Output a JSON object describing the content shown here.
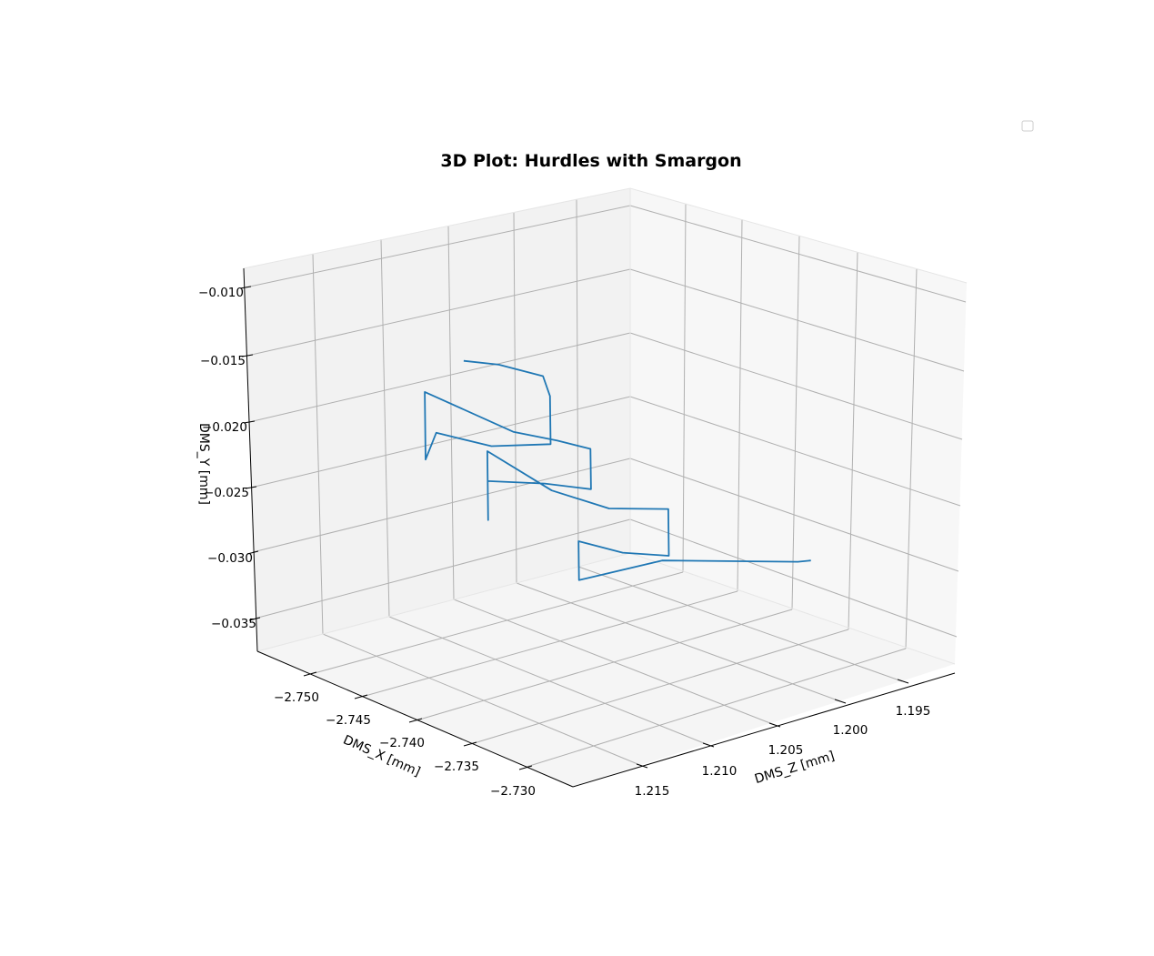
{
  "chart_data": {
    "type": "line3d",
    "title": "3D Plot: Hurdles with Smargon",
    "xlabel": "DMS_X [mm]",
    "ylabel": "DMS_Y [mm]",
    "zlabel": "DMS_Z [mm]",
    "x_ticks": [
      "−2.750",
      "−2.745",
      "−2.740",
      "−2.735",
      "−2.730"
    ],
    "y_ticks": [
      "−0.010",
      "−0.015",
      "−0.020",
      "−0.025",
      "−0.030",
      "−0.035"
    ],
    "z_ticks": [
      "1.195",
      "1.200",
      "1.205",
      "1.210",
      "1.215"
    ],
    "grid": true,
    "legend": "top-right (empty)",
    "series": [
      {
        "color": "#1f77b4",
        "x": [
          -2.75,
          -2.748,
          -2.744,
          -2.741,
          -2.741,
          -2.744,
          -2.749,
          -2.75,
          -2.75,
          -2.742,
          -2.738,
          -2.735,
          -2.735,
          -2.738,
          -2.742,
          -2.742,
          -2.742,
          -2.735,
          -2.731,
          -2.728,
          -2.728,
          -2.731,
          -2.735,
          -2.735,
          -2.731,
          -2.727,
          -2.727
        ],
        "y": [
          -0.0195,
          -0.0194,
          -0.0189,
          -0.0188,
          -0.0225,
          -0.0231,
          -0.0238,
          -0.0262,
          -0.021,
          -0.0213,
          -0.0206,
          -0.0202,
          -0.0233,
          -0.0236,
          -0.0245,
          -0.0275,
          -0.0222,
          -0.0225,
          -0.0228,
          -0.0224,
          -0.026,
          -0.0265,
          -0.027,
          -0.03,
          -0.028,
          -0.0288,
          -0.029
        ],
        "z": [
          1.203,
          1.202,
          1.202,
          1.204,
          1.204,
          1.206,
          1.206,
          1.206,
          1.206,
          1.206,
          1.206,
          1.206,
          1.206,
          1.207,
          1.208,
          1.208,
          1.208,
          1.209,
          1.208,
          1.206,
          1.206,
          1.207,
          1.207,
          1.207,
          1.204,
          1.197,
          1.196
        ]
      }
    ]
  }
}
